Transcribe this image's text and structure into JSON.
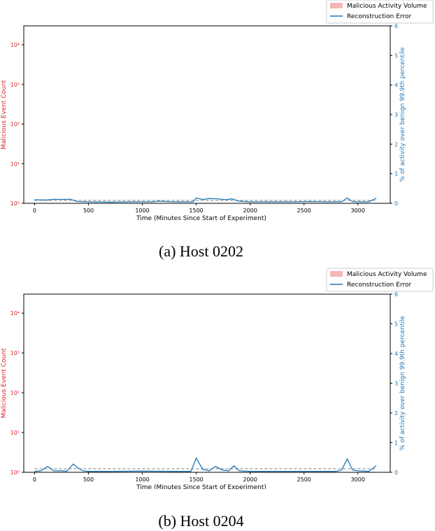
{
  "colors": {
    "left_axis": "#d62728",
    "right_axis": "#1f77b4",
    "line": "#1f77b4",
    "threshold": "#7f7f7f",
    "malicious_fill": "#f4b6b6"
  },
  "chart_data": [
    {
      "type": "line",
      "caption": "(a) Host 0202",
      "xlabel": "Time (Minutes Since Start of Experiment)",
      "ylabel_left": "Malicious Event Count",
      "ylabel_right": "% of activity over benign 99.9th percentile",
      "xlim": [
        -100,
        3300
      ],
      "xticks": [
        "0",
        "500",
        "1000",
        "1500",
        "2000",
        "2500",
        "3000"
      ],
      "yscale_left": "log",
      "ylim_left": [
        1,
        30000
      ],
      "yticks_left": [
        "10⁰",
        "10¹",
        "10²",
        "10³",
        "10⁴"
      ],
      "ylim_right": [
        0,
        6
      ],
      "yticks_right": [
        "0",
        "1",
        "2",
        "3",
        "4",
        "5",
        "6"
      ],
      "legend": {
        "placement": "top-right",
        "entries": [
          "Malicious Activity Volume",
          "Reconstruction Error"
        ]
      },
      "threshold": 0.1,
      "series": [
        {
          "name": "Reconstruction Error",
          "x": [
            0,
            120,
            180,
            250,
            330,
            400,
            500,
            700,
            900,
            1100,
            1150,
            1300,
            1470,
            1500,
            1560,
            1620,
            1700,
            1780,
            1830,
            1900,
            2000,
            2200,
            2400,
            2550,
            2700,
            2850,
            2900,
            2950,
            3000,
            3100,
            3170
          ],
          "values": [
            0.12,
            0.11,
            0.14,
            0.13,
            0.14,
            0.06,
            0.05,
            0.04,
            0.05,
            0.05,
            0.07,
            0.05,
            0.05,
            0.18,
            0.13,
            0.16,
            0.15,
            0.12,
            0.15,
            0.07,
            0.05,
            0.05,
            0.05,
            0.06,
            0.05,
            0.05,
            0.18,
            0.06,
            0.05,
            0.05,
            0.17
          ]
        }
      ]
    },
    {
      "type": "line",
      "caption": "(b) Host 0204",
      "xlabel": "Time (Minutes Since Start of Experiment)",
      "ylabel_left": "Malicious Event Count",
      "ylabel_right": "% of activity over benign 99.9th percentile",
      "xlim": [
        -100,
        3300
      ],
      "xticks": [
        "0",
        "500",
        "1000",
        "1500",
        "2000",
        "2500",
        "3000"
      ],
      "yscale_left": "log",
      "ylim_left": [
        1,
        30000
      ],
      "yticks_left": [
        "10⁰",
        "10¹",
        "10²",
        "10³",
        "10⁴"
      ],
      "ylim_right": [
        0,
        6
      ],
      "yticks_right": [
        "0",
        "1",
        "2",
        "3",
        "4",
        "5",
        "6"
      ],
      "legend": {
        "placement": "top-right",
        "entries": [
          "Malicious Activity Volume",
          "Reconstruction Error"
        ]
      },
      "threshold": 0.12,
      "series": [
        {
          "name": "Reconstruction Error",
          "x": [
            0,
            60,
            120,
            180,
            250,
            300,
            360,
            400,
            450,
            500,
            700,
            1000,
            1300,
            1450,
            1500,
            1560,
            1620,
            1680,
            1740,
            1800,
            1850,
            1900,
            2000,
            2300,
            2600,
            2800,
            2850,
            2900,
            2950,
            3000,
            3100,
            3170
          ],
          "values": [
            0.03,
            0.05,
            0.2,
            0.05,
            0.05,
            0.04,
            0.28,
            0.15,
            0.05,
            0.03,
            0.03,
            0.04,
            0.03,
            0.03,
            0.48,
            0.1,
            0.05,
            0.2,
            0.08,
            0.05,
            0.22,
            0.05,
            0.03,
            0.03,
            0.03,
            0.03,
            0.08,
            0.45,
            0.08,
            0.05,
            0.03,
            0.22
          ]
        }
      ]
    }
  ]
}
